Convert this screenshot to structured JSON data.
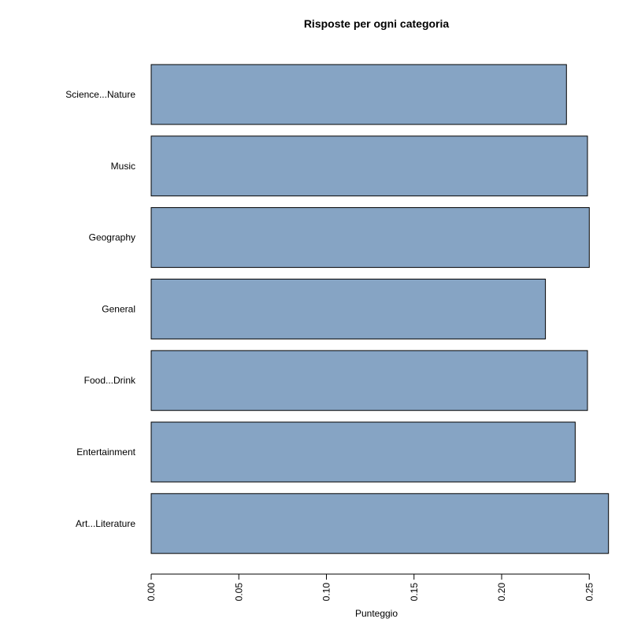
{
  "chart_data": {
    "type": "bar",
    "orientation": "horizontal",
    "title": "Risposte per ogni categoria",
    "xlabel": "Punteggio",
    "ylabel": "",
    "categories": [
      "Art...Literature",
      "Entertainment",
      "Food...Drink",
      "General",
      "Geography",
      "Music",
      "Science...Nature"
    ],
    "values": [
      0.261,
      0.242,
      0.249,
      0.225,
      0.25,
      0.249,
      0.237
    ],
    "xlim": [
      0,
      0.25
    ],
    "xticks": [
      0.0,
      0.05,
      0.1,
      0.15,
      0.2,
      0.25
    ],
    "xtick_labels": [
      "0.00",
      "0.05",
      "0.10",
      "0.15",
      "0.20",
      "0.25"
    ],
    "bar_color": "#86A4C4",
    "grid": false
  }
}
